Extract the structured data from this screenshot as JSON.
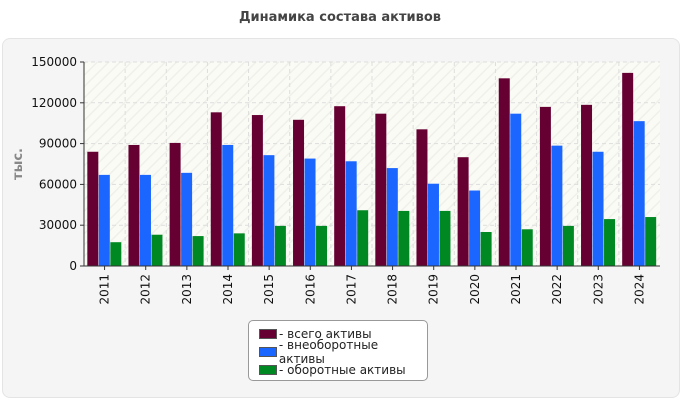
{
  "chart_data": {
    "type": "bar",
    "title": "Динамика состава активов",
    "xlabel": "",
    "ylabel": "тыс.",
    "ylim": [
      0,
      150000
    ],
    "yticks": [
      0,
      30000,
      60000,
      90000,
      120000,
      150000
    ],
    "categories": [
      "2011",
      "2012",
      "2013",
      "2014",
      "2015",
      "2016",
      "2017",
      "2018",
      "2019",
      "2020",
      "2021",
      "2022",
      "2023",
      "2024"
    ],
    "series": [
      {
        "name": "- всего активы",
        "color": "#660033",
        "values": [
          84000,
          89000,
          90500,
          113000,
          111000,
          107500,
          117500,
          112000,
          100500,
          80000,
          138000,
          117000,
          118500,
          142000
        ]
      },
      {
        "name": "- внеоборотные активы",
        "color": "#1a66ff",
        "values": [
          67000,
          67000,
          68500,
          89000,
          81500,
          79000,
          77000,
          72000,
          60500,
          55500,
          112000,
          88500,
          84000,
          106500
        ]
      },
      {
        "name": "- оборотные активы",
        "color": "#008822",
        "values": [
          17500,
          23000,
          22000,
          24000,
          29500,
          29500,
          41000,
          40500,
          40500,
          25000,
          27000,
          29500,
          34500,
          36000
        ]
      }
    ],
    "grid": true,
    "legend_position": "bottom-center"
  }
}
